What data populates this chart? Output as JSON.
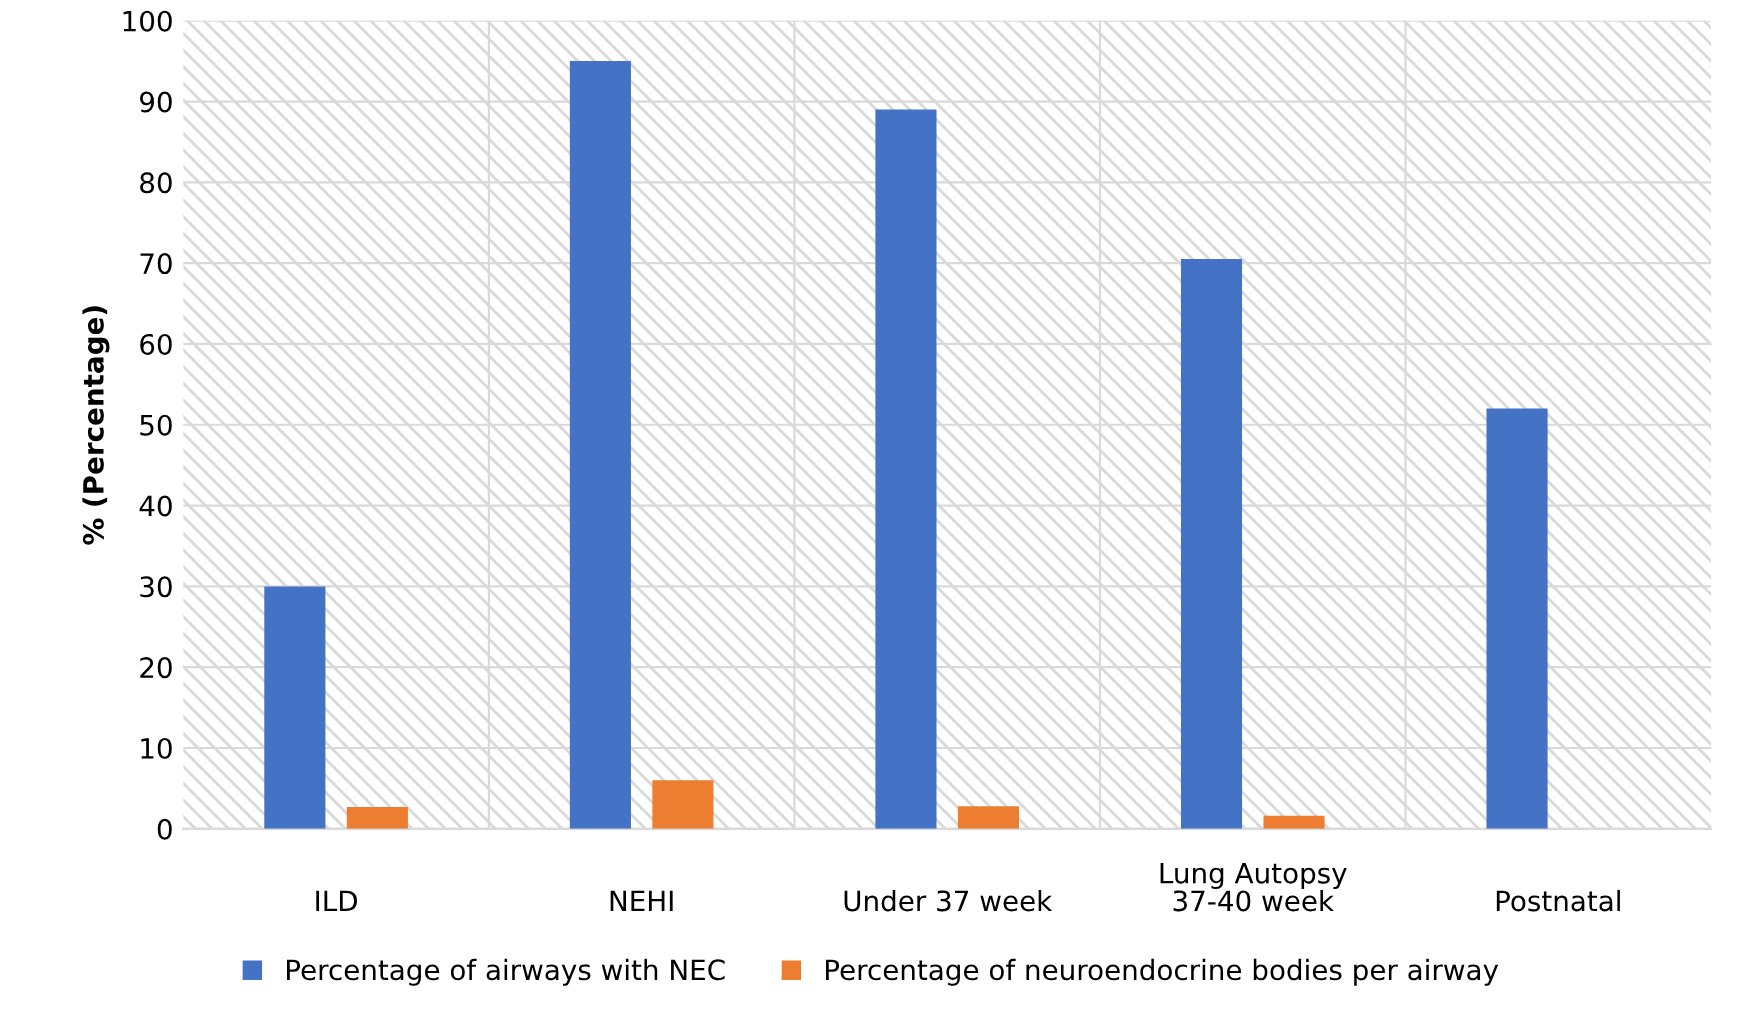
{
  "chart_data": {
    "type": "bar",
    "ylabel": "% (Percentage)",
    "categories": [
      "ILD",
      "NEHI",
      "Under 37 week",
      "37-40 week",
      "Postnatal"
    ],
    "series": [
      {
        "name": "Percentage of airways with NEC",
        "color": "#4472c4",
        "values": [
          30,
          95,
          89,
          70.5,
          52
        ]
      },
      {
        "name": "Percentage of neuroendocrine bodies per airway",
        "color": "#ed7d31",
        "values": [
          2.7,
          6,
          2.8,
          1.6,
          null
        ]
      }
    ],
    "annotations": [
      "Lung Autopsy"
    ],
    "ylim": [
      0,
      100
    ],
    "yticks": [
      0,
      10,
      20,
      30,
      40,
      50,
      60,
      70,
      80,
      90,
      100
    ],
    "grid": true,
    "legend": "bottom"
  }
}
